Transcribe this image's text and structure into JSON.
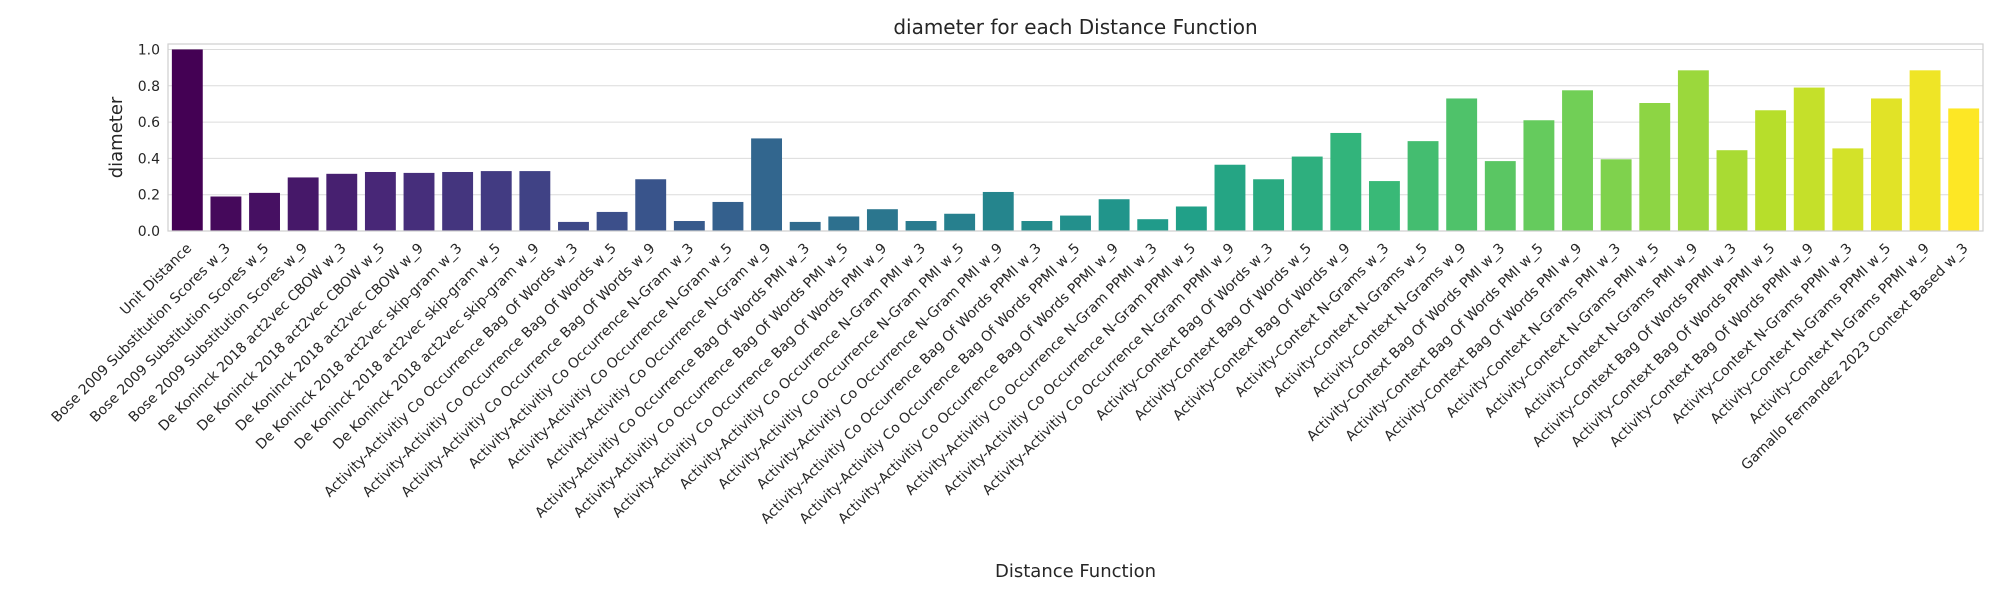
{
  "chart_data": {
    "type": "bar",
    "title": "diameter for each Distance Function",
    "xlabel": "Distance Function",
    "ylabel": "diameter",
    "ylim": [
      0,
      1.03
    ],
    "yticks": [
      "0.0",
      "0.2",
      "0.4",
      "0.6",
      "0.8",
      "1.0"
    ],
    "ytick_values": [
      0,
      0.2,
      0.4,
      0.6,
      0.8,
      1.0
    ],
    "grid": true,
    "palette": "viridis",
    "categories": [
      "Unit Distance",
      "Bose 2009 Substitution Scores w_3",
      "Bose 2009 Substitution Scores w_5",
      "Bose 2009 Substitution Scores w_9",
      "De Koninck 2018 act2vec CBOW w_3",
      "De Koninck 2018 act2vec CBOW w_5",
      "De Koninck 2018 act2vec CBOW w_9",
      "De Koninck 2018 act2vec skip-gram w_3",
      "De Koninck 2018 act2vec skip-gram w_5",
      "De Koninck 2018 act2vec skip-gram w_9",
      "Activity-Activitiy Co Occurrence Bag Of Words w_3",
      "Activity-Activitiy Co Occurrence Bag Of Words w_5",
      "Activity-Activitiy Co Occurrence Bag Of Words w_9",
      "Activity-Activitiy Co Occurrence N-Gram w_3",
      "Activity-Activitiy Co Occurrence N-Gram w_5",
      "Activity-Activitiy Co Occurrence N-Gram w_9",
      "Activity-Activitiy Co Occurrence Bag Of Words PMI w_3",
      "Activity-Activitiy Co Occurrence Bag Of Words PMI w_5",
      "Activity-Activitiy Co Occurrence Bag Of Words PMI w_9",
      "Activity-Activitiy Co Occurrence N-Gram PMI w_3",
      "Activity-Activitiy Co Occurrence N-Gram PMI w_5",
      "Activity-Activitiy Co Occurrence N-Gram PMI w_9",
      "Activity-Activitiy Co Occurrence Bag Of Words PPMI w_3",
      "Activity-Activitiy Co Occurrence Bag Of Words PPMI w_5",
      "Activity-Activitiy Co Occurrence Bag Of Words PPMI w_9",
      "Activity-Activitiy Co Occurrence N-Gram PPMI w_3",
      "Activity-Activitiy Co Occurrence N-Gram PPMI w_5",
      "Activity-Activitiy Co Occurrence N-Gram PPMI w_9",
      "Activity-Context Bag Of Words w_3",
      "Activity-Context Bag Of Words w_5",
      "Activity-Context Bag Of Words w_9",
      "Activity-Context N-Grams w_3",
      "Activity-Context N-Grams w_5",
      "Activity-Context N-Grams w_9",
      "Activity-Context Bag Of Words PMI w_3",
      "Activity-Context Bag Of Words PMI w_5",
      "Activity-Context Bag Of Words PMI w_9",
      "Activity-Context N-Grams PMI w_3",
      "Activity-Context N-Grams PMI w_5",
      "Activity-Context N-Grams PMI w_9",
      "Activity-Context Bag Of Words PPMI w_3",
      "Activity-Context Bag Of Words PPMI w_5",
      "Activity-Context Bag Of Words PPMI w_9",
      "Activity-Context N-Grams PPMI w_3",
      "Activity-Context N-Grams PPMI w_5",
      "Activity-Context N-Grams PPMI w_9",
      "Gamallo Fernandez 2023 Context Based w_3"
    ],
    "values": [
      1.0,
      0.19,
      0.21,
      0.295,
      0.315,
      0.325,
      0.32,
      0.325,
      0.33,
      0.33,
      0.05,
      0.105,
      0.285,
      0.055,
      0.16,
      0.51,
      0.05,
      0.08,
      0.12,
      0.055,
      0.095,
      0.215,
      0.055,
      0.085,
      0.175,
      0.065,
      0.135,
      0.365,
      0.285,
      0.41,
      0.54,
      0.275,
      0.495,
      0.73,
      0.385,
      0.61,
      0.775,
      0.395,
      0.705,
      0.885,
      0.445,
      0.665,
      0.79,
      0.455,
      0.73,
      0.885,
      0.675
    ]
  }
}
